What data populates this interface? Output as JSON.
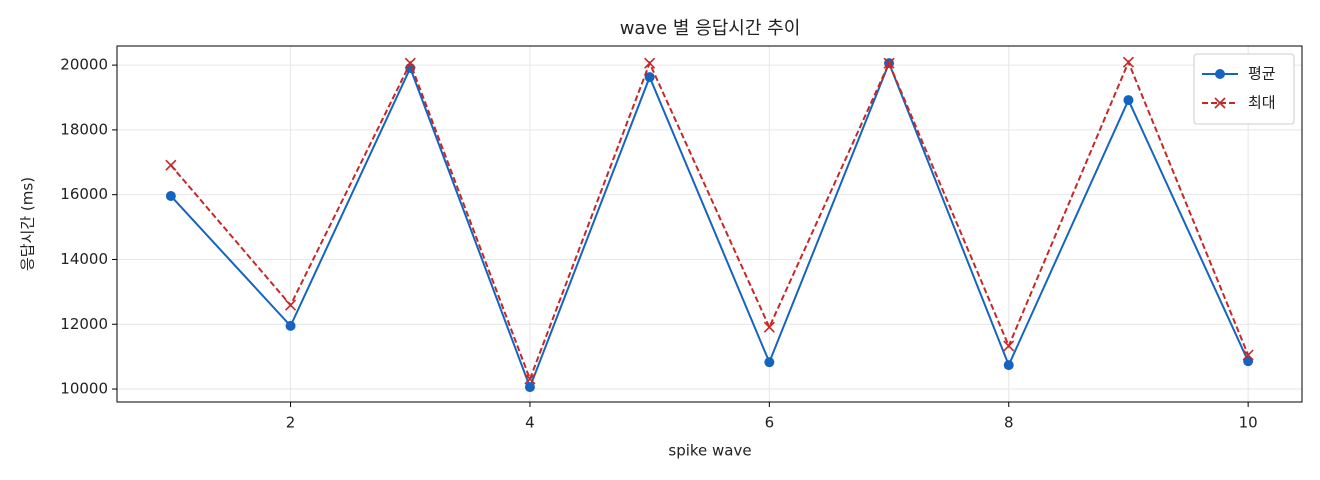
{
  "chart_data": {
    "type": "line",
    "title": "wave 별 응답시간 추이",
    "xlabel": "spike wave",
    "ylabel": "응답시간 (ms)",
    "x": [
      1,
      2,
      3,
      4,
      5,
      6,
      7,
      8,
      9,
      10
    ],
    "series": [
      {
        "name": "평균",
        "color": "#1565c0",
        "marker": "o",
        "linestyle": "solid",
        "values": [
          15960,
          11950,
          19910,
          10060,
          19630,
          10830,
          20060,
          10740,
          18920,
          10860
        ]
      },
      {
        "name": "최대",
        "color": "#c62828",
        "marker": "x",
        "linestyle": "dashed",
        "values": [
          16910,
          12590,
          20060,
          10310,
          20060,
          11910,
          20060,
          11330,
          20090,
          11050
        ]
      }
    ],
    "xlim": [
      0.55,
      10.45
    ],
    "xticks": [
      2,
      4,
      6,
      8,
      10
    ],
    "ylim": [
      9600,
      20590
    ],
    "yticks": [
      10000,
      12000,
      14000,
      16000,
      18000,
      20000
    ],
    "grid": true,
    "legend": "upper right"
  }
}
